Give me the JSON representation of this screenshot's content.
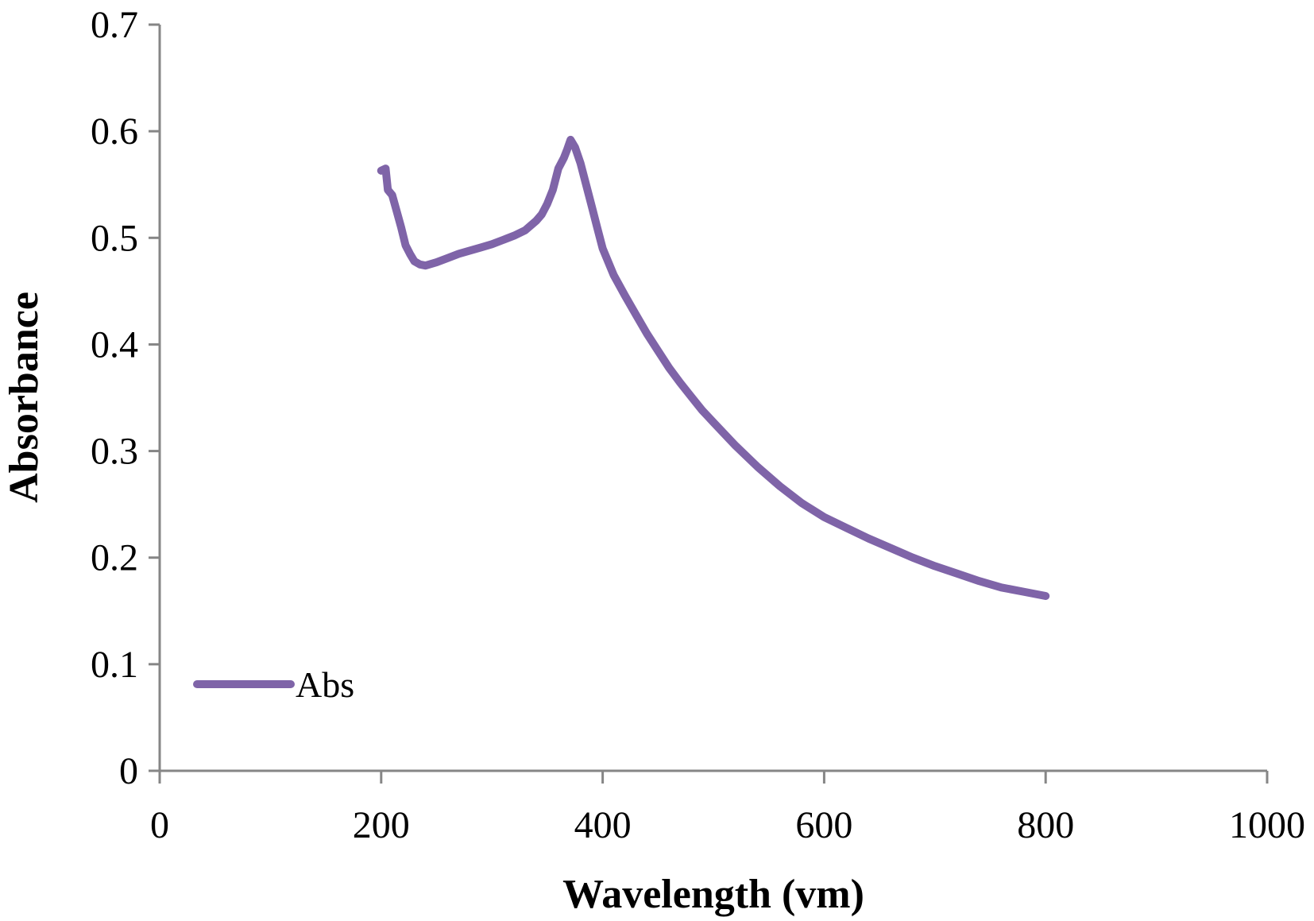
{
  "chart_data": {
    "type": "line",
    "xlabel": "Wavelength (vm)",
    "ylabel": "Absorbance",
    "xlim": [
      0,
      1000
    ],
    "ylim": [
      0,
      0.7
    ],
    "x_ticks": [
      "0",
      "200",
      "400",
      "600",
      "800",
      "1000"
    ],
    "y_ticks": [
      "0",
      "0.1",
      "0.2",
      "0.3",
      "0.4",
      "0.5",
      "0.6",
      "0.7"
    ],
    "grid": false,
    "legend_position": "bottom-left",
    "series": [
      {
        "name": "Abs",
        "color": "#7F64A8",
        "points": [
          [
            200,
            0.563
          ],
          [
            204,
            0.565
          ],
          [
            206,
            0.545
          ],
          [
            210,
            0.54
          ],
          [
            214,
            0.525
          ],
          [
            218,
            0.51
          ],
          [
            222,
            0.493
          ],
          [
            226,
            0.485
          ],
          [
            230,
            0.478
          ],
          [
            235,
            0.475
          ],
          [
            240,
            0.474
          ],
          [
            250,
            0.477
          ],
          [
            260,
            0.481
          ],
          [
            270,
            0.485
          ],
          [
            280,
            0.488
          ],
          [
            290,
            0.491
          ],
          [
            300,
            0.494
          ],
          [
            310,
            0.498
          ],
          [
            320,
            0.502
          ],
          [
            330,
            0.507
          ],
          [
            340,
            0.516
          ],
          [
            345,
            0.522
          ],
          [
            350,
            0.532
          ],
          [
            355,
            0.545
          ],
          [
            360,
            0.565
          ],
          [
            365,
            0.575
          ],
          [
            368,
            0.583
          ],
          [
            371,
            0.592
          ],
          [
            375,
            0.585
          ],
          [
            380,
            0.57
          ],
          [
            385,
            0.55
          ],
          [
            390,
            0.53
          ],
          [
            395,
            0.51
          ],
          [
            400,
            0.49
          ],
          [
            410,
            0.465
          ],
          [
            420,
            0.446
          ],
          [
            430,
            0.428
          ],
          [
            440,
            0.41
          ],
          [
            450,
            0.394
          ],
          [
            460,
            0.378
          ],
          [
            470,
            0.364
          ],
          [
            480,
            0.351
          ],
          [
            490,
            0.338
          ],
          [
            500,
            0.327
          ],
          [
            520,
            0.305
          ],
          [
            540,
            0.285
          ],
          [
            560,
            0.267
          ],
          [
            580,
            0.251
          ],
          [
            600,
            0.238
          ],
          [
            620,
            0.228
          ],
          [
            640,
            0.218
          ],
          [
            660,
            0.209
          ],
          [
            680,
            0.2
          ],
          [
            700,
            0.192
          ],
          [
            720,
            0.185
          ],
          [
            740,
            0.178
          ],
          [
            760,
            0.172
          ],
          [
            780,
            0.168
          ],
          [
            800,
            0.164
          ]
        ]
      }
    ]
  }
}
